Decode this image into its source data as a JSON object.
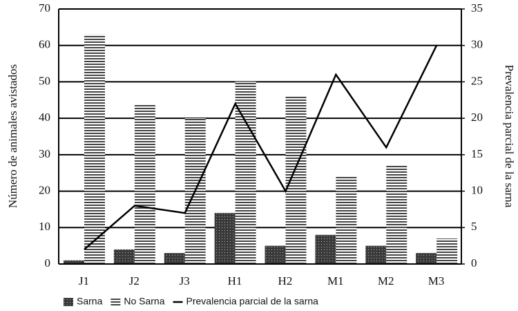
{
  "chart_data": {
    "type": "bar_line",
    "y_label": "Número de animales avistados",
    "y2_label": "Prevalencia parcial de la sarna",
    "categories": [
      "J1",
      "J2",
      "J3",
      "H1",
      "H2",
      "M1",
      "M2",
      "M3"
    ],
    "series": [
      {
        "name": "Sarna",
        "type": "bar",
        "pattern": "dots",
        "color": "#3a3a3a",
        "values": [
          1,
          4,
          3,
          14,
          5,
          8,
          5,
          3
        ]
      },
      {
        "name": "No Sarna",
        "type": "bar",
        "pattern": "stripes",
        "color": "#444444",
        "values": [
          63,
          44,
          40,
          50,
          46,
          24,
          27,
          7
        ]
      },
      {
        "name": "Prevalencia parcial de la sarna",
        "type": "line",
        "axis": "y2",
        "color": "#000000",
        "values": [
          2,
          8,
          7,
          22,
          10,
          26,
          16,
          30
        ]
      }
    ],
    "ylim": [
      0,
      70
    ],
    "yticks": [
      0,
      10,
      20,
      30,
      40,
      50,
      60,
      70
    ],
    "y2lim": [
      0,
      35
    ],
    "y2ticks": [
      0,
      5,
      10,
      15,
      20,
      25,
      30,
      35
    ],
    "grid": true,
    "legend": "bottom"
  }
}
